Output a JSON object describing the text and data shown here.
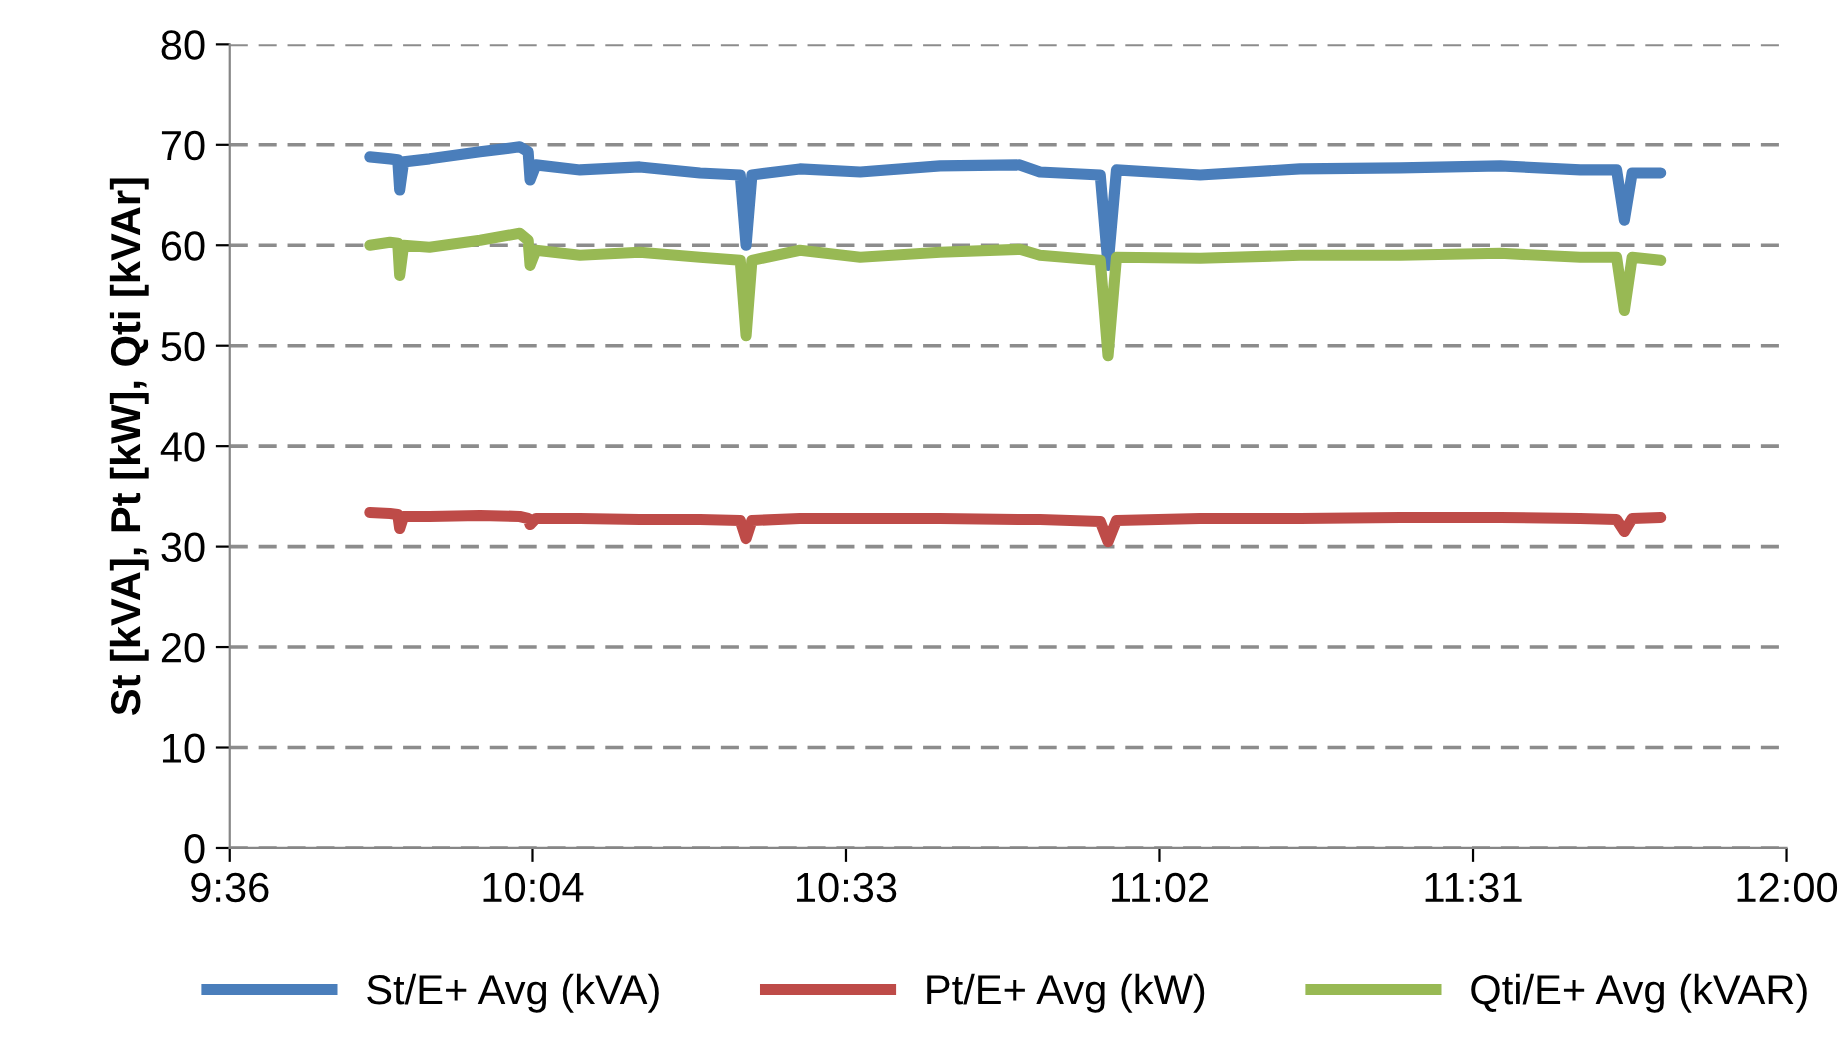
{
  "chart_data": {
    "type": "line",
    "ylabel": "St [kVA], Pt [kW], Qti [kVAr]",
    "x": [
      9.816,
      9.847,
      9.859,
      9.862,
      9.868,
      9.908,
      9.986,
      10.047,
      10.06,
      10.063,
      10.072,
      10.14,
      10.232,
      10.325,
      10.387,
      10.396,
      10.405,
      10.479,
      10.572,
      10.695,
      10.818,
      10.849,
      10.942,
      10.954,
      10.967,
      11.096,
      11.25,
      11.405,
      11.559,
      11.682,
      11.738,
      11.75,
      11.762,
      11.806
    ],
    "series": [
      {
        "name": "St/E+ Avg (kVA)",
        "color": "#4a7ebb",
        "values": [
          68.8,
          68.6,
          68.5,
          65.5,
          68.3,
          68.6,
          69.3,
          69.8,
          69.3,
          66.5,
          68.0,
          67.5,
          67.8,
          67.2,
          67.0,
          60.0,
          67.0,
          67.6,
          67.3,
          67.9,
          68.0,
          67.3,
          67.0,
          58.0,
          67.5,
          67.0,
          67.6,
          67.7,
          67.9,
          67.5,
          67.5,
          62.5,
          67.2,
          67.2
        ]
      },
      {
        "name": "Pt/E+ Avg (kW)",
        "color": "#be4b48",
        "values": [
          33.4,
          33.3,
          33.2,
          31.8,
          33.0,
          33.0,
          33.1,
          33.0,
          32.8,
          32.2,
          32.8,
          32.8,
          32.7,
          32.7,
          32.6,
          30.8,
          32.6,
          32.8,
          32.8,
          32.8,
          32.7,
          32.7,
          32.5,
          30.5,
          32.6,
          32.8,
          32.8,
          32.9,
          32.9,
          32.8,
          32.7,
          31.5,
          32.8,
          32.9
        ]
      },
      {
        "name": "Qti/E+ Avg (kVAR)",
        "color": "#98b954",
        "values": [
          60.0,
          60.3,
          60.2,
          57.0,
          60.0,
          59.8,
          60.5,
          61.2,
          60.5,
          58.0,
          59.5,
          59.0,
          59.3,
          58.8,
          58.5,
          51.0,
          58.5,
          59.5,
          58.8,
          59.3,
          59.6,
          59.0,
          58.5,
          49.0,
          58.8,
          58.7,
          59.0,
          59.0,
          59.2,
          58.8,
          58.8,
          53.5,
          58.8,
          58.5
        ]
      }
    ],
    "xlim": [
      9.6,
      12.0
    ],
    "xticks": [
      {
        "value": 9.6,
        "label": "9:36"
      },
      {
        "value": 10.0667,
        "label": "10:04"
      },
      {
        "value": 10.55,
        "label": "10:33"
      },
      {
        "value": 11.0333,
        "label": "11:02"
      },
      {
        "value": 11.5167,
        "label": "11:31"
      },
      {
        "value": 12.0,
        "label": "12:00"
      }
    ],
    "ylim": [
      0,
      80
    ],
    "yticks": [
      0,
      10,
      20,
      30,
      40,
      50,
      60,
      70,
      80
    ],
    "grid": "y",
    "legend": "bottom",
    "marker": "none",
    "line_style": "solid"
  }
}
